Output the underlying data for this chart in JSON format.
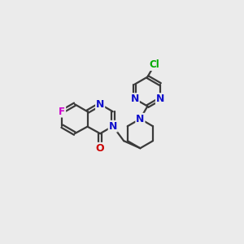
{
  "bg_color": "#ebebeb",
  "bond_color": "#3a3a3a",
  "bond_width": 1.6,
  "atom_colors": {
    "N": "#1010cc",
    "O": "#cc0000",
    "F": "#cc00cc",
    "Cl": "#00aa00",
    "C": "#303030"
  },
  "font_size": 9.0,
  "figsize": [
    3.0,
    3.0
  ],
  "dpi": 100
}
